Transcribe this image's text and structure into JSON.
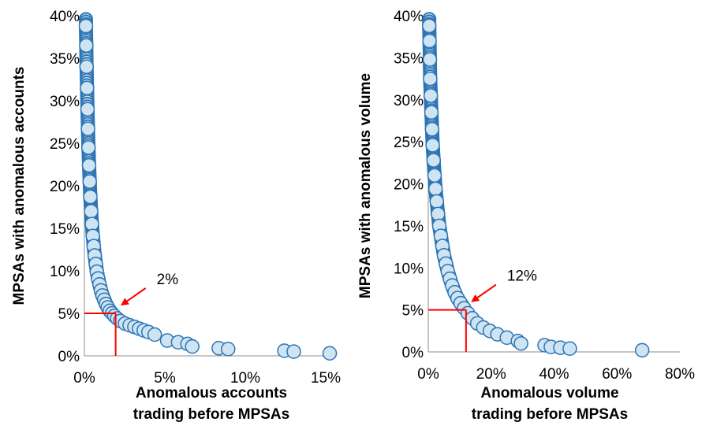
{
  "chart_data": [
    {
      "type": "scatter",
      "xlabel": [
        "Anomalous accounts",
        "trading before MPSAs"
      ],
      "ylabel": "MPSAs with anomalous accounts",
      "xlim": [
        0,
        16
      ],
      "ylim": [
        0,
        40
      ],
      "x_ticks": [
        "0%",
        "5%",
        "10%",
        "15%"
      ],
      "y_ticks": [
        "0%",
        "5%",
        "10%",
        "15%",
        "20%",
        "25%",
        "30%",
        "35%",
        "40%"
      ],
      "annotation": "2%",
      "threshold": {
        "x": 2,
        "y": 5
      },
      "marker_fill": "#cfe4f2",
      "marker_edge": "#2e75b6",
      "series": [
        {
          "x": [
            0.1,
            0.12,
            0.14,
            0.17,
            0.2,
            0.23,
            0.26,
            0.3,
            0.34,
            0.38,
            0.43,
            0.48,
            0.54,
            0.6,
            0.66,
            0.73,
            0.8,
            0.88,
            0.97,
            1.06,
            1.16,
            1.27,
            1.38,
            1.5,
            1.63,
            1.77,
            1.92,
            2.1,
            2.3,
            2.6,
            2.9,
            3.2,
            3.5,
            3.8,
            4.1,
            4.5,
            5.3,
            6.0,
            6.6,
            6.9,
            8.6,
            9.2,
            12.8,
            13.4,
            15.7
          ],
          "y": [
            38.8,
            36.5,
            34.0,
            31.5,
            29.0,
            26.7,
            24.5,
            22.4,
            20.5,
            18.7,
            17.0,
            15.5,
            14.1,
            12.9,
            11.8,
            10.8,
            9.9,
            9.1,
            8.4,
            7.7,
            7.1,
            6.6,
            6.1,
            5.7,
            5.3,
            5.0,
            4.7,
            4.4,
            4.1,
            3.8,
            3.6,
            3.4,
            3.2,
            3.0,
            2.8,
            2.5,
            1.8,
            1.6,
            1.4,
            1.1,
            0.9,
            0.8,
            0.6,
            0.5,
            0.3
          ]
        }
      ]
    },
    {
      "type": "scatter",
      "xlabel": [
        "Anomalous volume",
        "trading before MPSAs"
      ],
      "ylabel": "MPSAs with anomalous volume",
      "xlim": [
        0,
        80
      ],
      "ylim": [
        0,
        40
      ],
      "x_ticks": [
        "0%",
        "20%",
        "40%",
        "60%",
        "80%"
      ],
      "y_ticks": [
        "0%",
        "5%",
        "10%",
        "15%",
        "20%",
        "25%",
        "30%",
        "35%",
        "40%"
      ],
      "annotation": "12%",
      "threshold": {
        "x": 12,
        "y": 5
      },
      "marker_fill": "#cfe4f2",
      "marker_edge": "#2e75b6",
      "series": [
        {
          "x": [
            0.3,
            0.4,
            0.5,
            0.6,
            0.8,
            1.0,
            1.2,
            1.4,
            1.7,
            2.0,
            2.3,
            2.7,
            3.1,
            3.5,
            4.0,
            4.5,
            5.0,
            5.6,
            6.2,
            6.9,
            7.6,
            8.4,
            9.3,
            10.3,
            11.4,
            12.6,
            14.0,
            15.6,
            17.5,
            19.6,
            22.0,
            25.0,
            28.5,
            29.5,
            37.0,
            39.0,
            42.0,
            45.0,
            68.0
          ],
          "y": [
            38.8,
            37.0,
            34.8,
            32.5,
            30.5,
            28.5,
            26.5,
            24.6,
            22.8,
            21.0,
            19.4,
            17.9,
            16.4,
            15.0,
            13.8,
            12.6,
            11.5,
            10.5,
            9.6,
            8.7,
            7.9,
            7.1,
            6.4,
            5.8,
            5.2,
            4.6,
            4.0,
            3.4,
            2.9,
            2.5,
            2.1,
            1.7,
            1.3,
            1.0,
            0.8,
            0.6,
            0.5,
            0.4,
            0.2
          ]
        }
      ]
    }
  ]
}
